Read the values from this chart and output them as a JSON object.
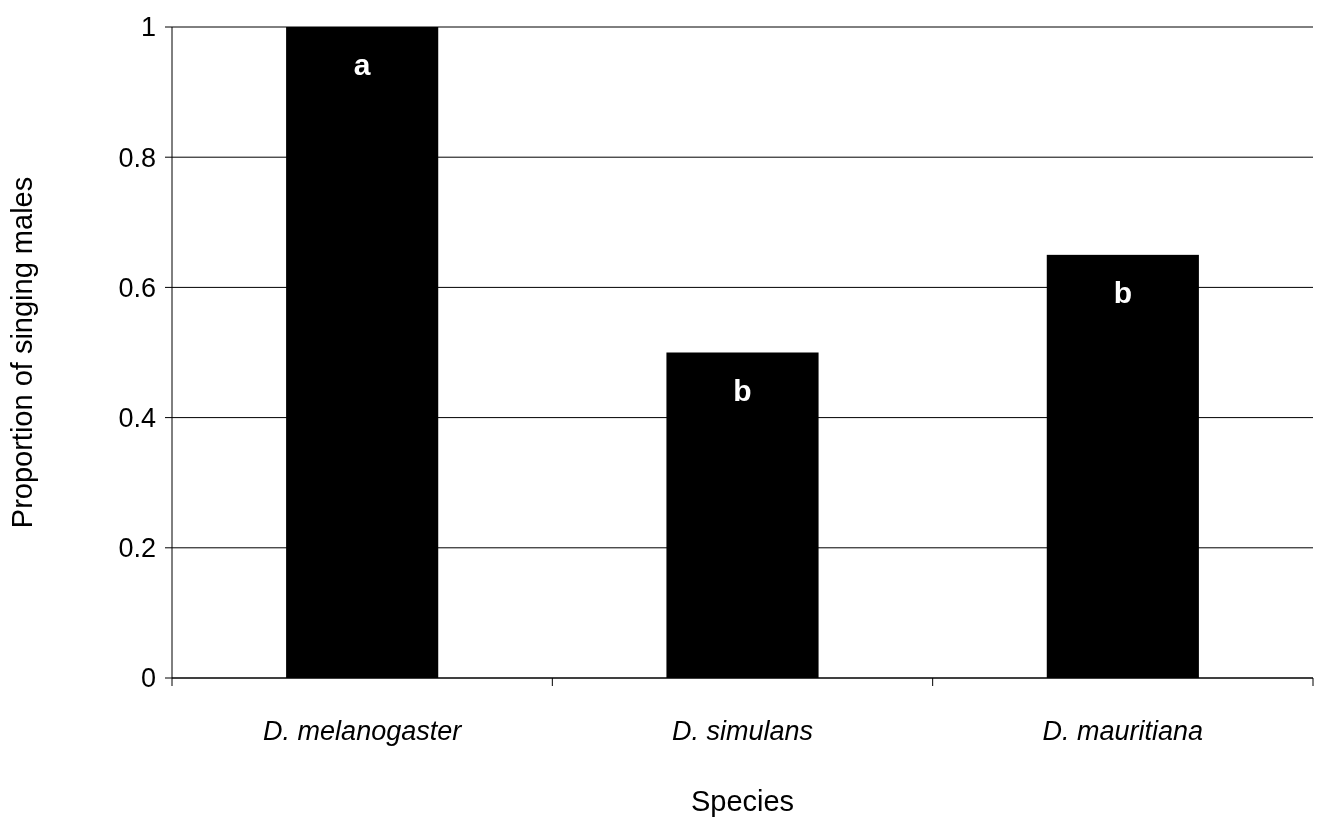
{
  "chart_data": {
    "type": "bar",
    "xlabel": "Species",
    "ylabel": "Proportion of singing males",
    "categories": [
      "D. melanogaster",
      "D. simulans",
      "D. mauritiana"
    ],
    "values": [
      1,
      0.5,
      0.65
    ],
    "color": "#000000",
    "ylim": [
      0,
      1
    ],
    "yticks": [
      0,
      0.2,
      0.4,
      0.6,
      0.8,
      1
    ],
    "grid": "y",
    "annotations": [
      {
        "text": "a",
        "x": "D. melanogaster",
        "y": 1
      },
      {
        "text": "b",
        "x": "D. simulans",
        "y": 0.5
      },
      {
        "text": "b",
        "x": "D. mauritiana",
        "y": 0.65
      }
    ]
  }
}
